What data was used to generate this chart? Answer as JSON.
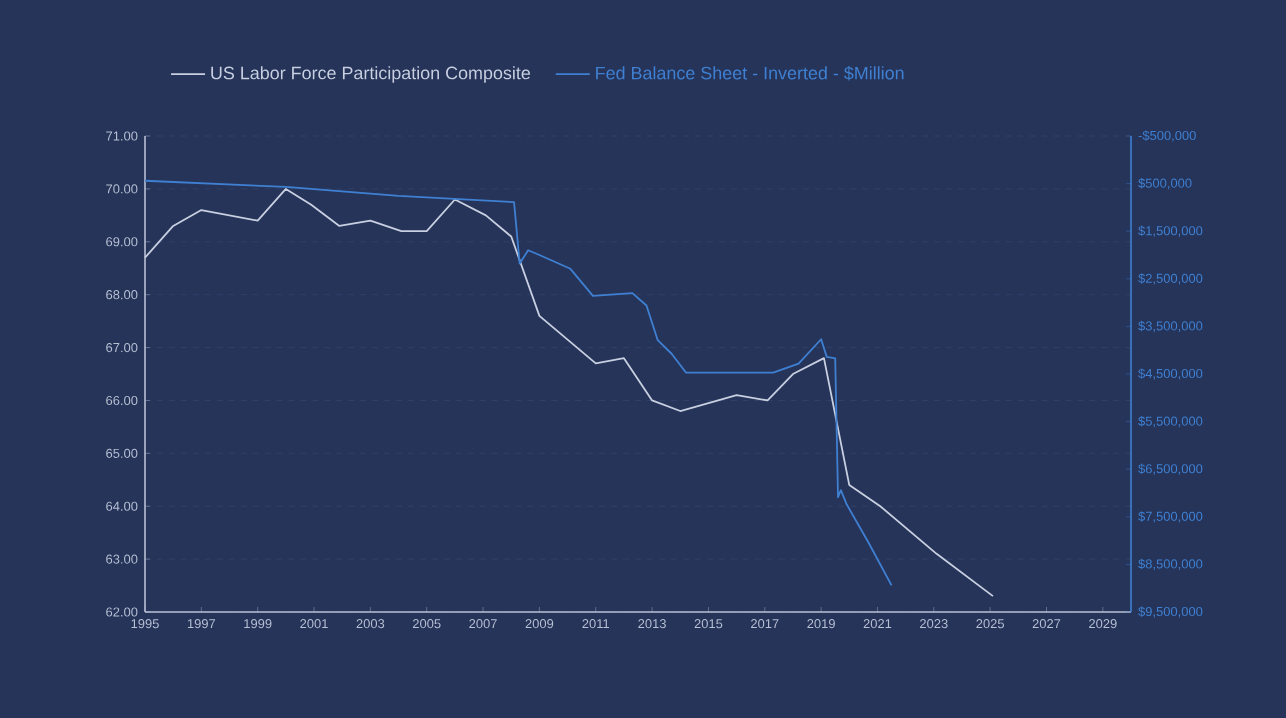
{
  "chart_data": {
    "type": "line",
    "legend": "top",
    "grid": "y",
    "xlim": [
      1995,
      2030
    ],
    "xticks": [
      1995,
      1997,
      1999,
      2001,
      2003,
      2005,
      2007,
      2009,
      2011,
      2013,
      2015,
      2017,
      2019,
      2021,
      2023,
      2025,
      2027,
      2029
    ],
    "ylim": [
      62,
      71
    ],
    "yticks": [
      {
        "value": 62,
        "label": "62.00"
      },
      {
        "value": 63,
        "label": "63.00"
      },
      {
        "value": 64,
        "label": "64.00"
      },
      {
        "value": 65,
        "label": "65.00"
      },
      {
        "value": 66,
        "label": "66.00"
      },
      {
        "value": 67,
        "label": "67.00"
      },
      {
        "value": 68,
        "label": "68.00"
      },
      {
        "value": 69,
        "label": "69.00"
      },
      {
        "value": 70,
        "label": "70.00"
      },
      {
        "value": 71,
        "label": "71.00"
      }
    ],
    "y2lim": [
      9500000,
      -500000
    ],
    "y2ticks": [
      {
        "value": -500000,
        "label": "-$500,000"
      },
      {
        "value": 500000,
        "label": "$500,000"
      },
      {
        "value": 1500000,
        "label": "$1,500,000"
      },
      {
        "value": 2500000,
        "label": "$2,500,000"
      },
      {
        "value": 3500000,
        "label": "$3,500,000"
      },
      {
        "value": 4500000,
        "label": "$4,500,000"
      },
      {
        "value": 5500000,
        "label": "$5,500,000"
      },
      {
        "value": 6500000,
        "label": "$6,500,000"
      },
      {
        "value": 7500000,
        "label": "$7,500,000"
      },
      {
        "value": 8500000,
        "label": "$8,500,000"
      },
      {
        "value": 9500000,
        "label": "$9,500,000"
      }
    ],
    "series": [
      {
        "name": "US Labor Force Participation Composite",
        "color": "#c8cfe0",
        "x": [
          1995,
          1996,
          1997,
          1999,
          2000,
          2000.9,
          2001.9,
          2003,
          2004.1,
          2005,
          2006,
          2007.1,
          2008,
          2009,
          2011,
          2012,
          2013,
          2014,
          2016,
          2017.1,
          2018,
          2019.1,
          2020,
          2021.1,
          2023.1,
          2025.1
        ],
        "values": [
          68.7,
          69.3,
          69.6,
          69.4,
          70.0,
          69.7,
          69.3,
          69.4,
          69.2,
          69.2,
          69.8,
          69.5,
          69.1,
          67.6,
          66.7,
          66.8,
          66.0,
          65.8,
          66.1,
          66.0,
          66.5,
          66.8,
          64.4,
          64.0,
          63.1,
          62.3
        ]
      },
      {
        "name": "Fed Balance Sheet - Inverted - $Million",
        "color": "#3f80d2",
        "axis": "y2",
        "x": [
          1995,
          2000,
          2004,
          2008.1,
          2008.3,
          2008.6,
          2009,
          2010.1,
          2010.9,
          2012.3,
          2012.8,
          2013.2,
          2013.7,
          2014.2,
          2017.3,
          2018.2,
          2019,
          2019.2,
          2019.5,
          2019.6,
          2019.7,
          2019.9,
          2020.7,
          2021.5
        ],
        "values": [
          440000,
          570000,
          760000,
          890000,
          2180000,
          1900000,
          2000000,
          2290000,
          2860000,
          2800000,
          3060000,
          3790000,
          4080000,
          4470000,
          4470000,
          4280000,
          3770000,
          4140000,
          4170000,
          7090000,
          6940000,
          7230000,
          8060000,
          8940000
        ]
      }
    ]
  }
}
